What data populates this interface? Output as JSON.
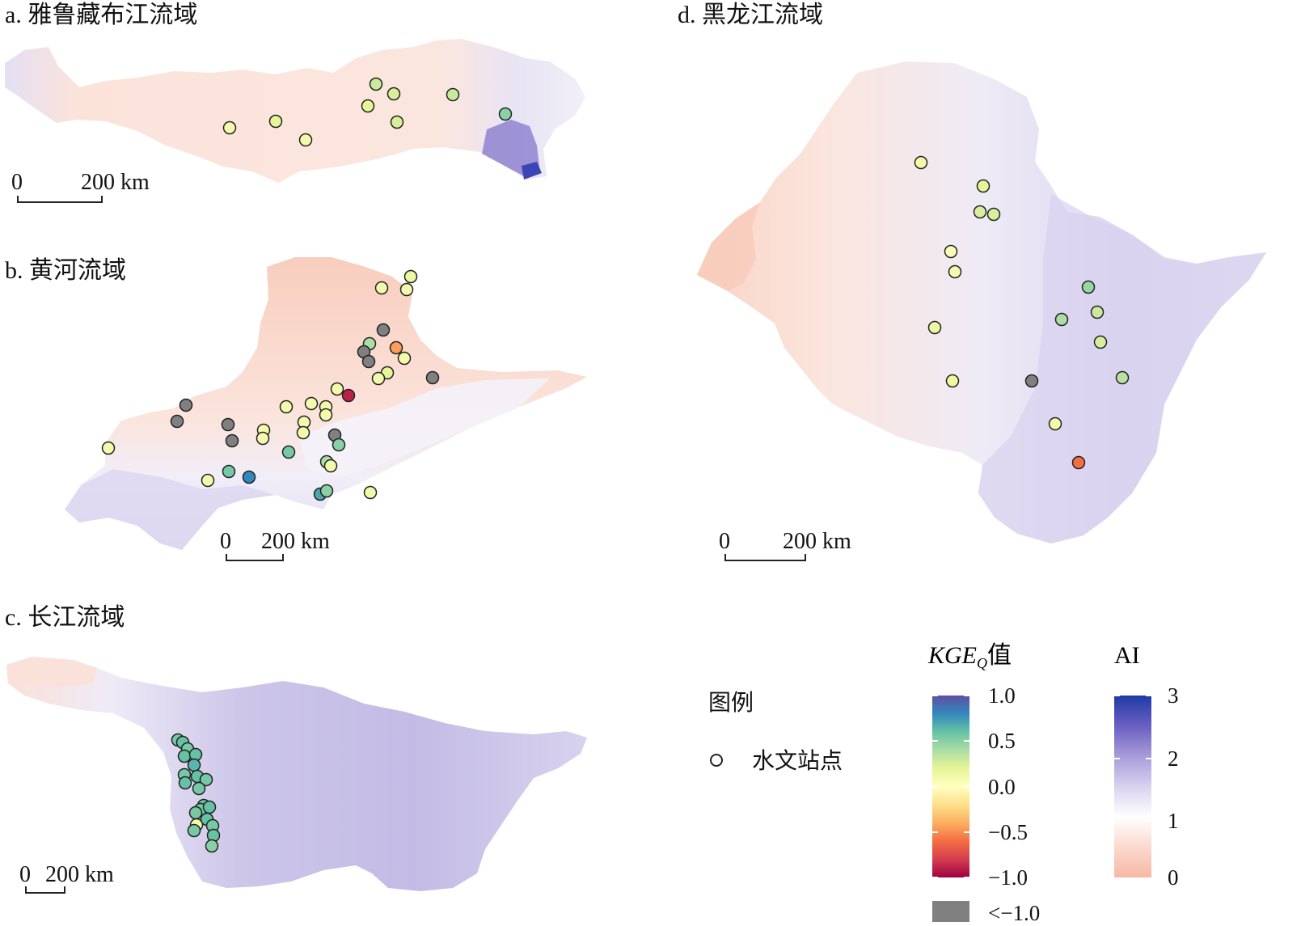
{
  "panels": [
    {
      "id": "a",
      "title": "a. 雅鲁藏布江流域",
      "scale": {
        "zero": "0",
        "label": "200 km"
      },
      "stations": [
        {
          "kge": 0.1
        },
        {
          "kge": 0.2
        },
        {
          "kge": 0.1
        },
        {
          "kge": 0.3
        },
        {
          "kge": 0.25
        },
        {
          "kge": 0.2
        },
        {
          "kge": 0.25
        },
        {
          "kge": 0.3
        },
        {
          "kge": 0.5
        }
      ]
    },
    {
      "id": "b",
      "title": "b. 黄河流域",
      "scale": {
        "zero": "0",
        "label": "200 km"
      },
      "stations": [
        {
          "kge": 0.15
        },
        {
          "kge": 0.1
        },
        {
          "kge": 0.1
        },
        {
          "kge": -2
        },
        {
          "kge": 0.4
        },
        {
          "kge": -2
        },
        {
          "kge": -2
        },
        {
          "kge": -0.45
        },
        {
          "kge": 0.1
        },
        {
          "kge": 0.2
        },
        {
          "kge": 0.1
        },
        {
          "kge": -2
        },
        {
          "kge": 0.1
        },
        {
          "kge": -0.9
        },
        {
          "kge": 0.1
        },
        {
          "kge": 0.1
        },
        {
          "kge": 0.1
        },
        {
          "kge": -2
        },
        {
          "kge": -2
        },
        {
          "kge": 0.1
        },
        {
          "kge": 0.1
        },
        {
          "kge": 0.1
        },
        {
          "kge": -2
        },
        {
          "kge": -2
        },
        {
          "kge": 0.1
        },
        {
          "kge": -2
        },
        {
          "kge": 0.1
        },
        {
          "kge": 0.5
        },
        {
          "kge": 0.55
        },
        {
          "kge": 0.1
        },
        {
          "kge": 0.4
        },
        {
          "kge": 0.1
        },
        {
          "kge": 0.55
        },
        {
          "kge": 0.8
        },
        {
          "kge": 0.1
        },
        {
          "kge": 0.7
        },
        {
          "kge": 0.5
        },
        {
          "kge": 0.1
        }
      ]
    },
    {
      "id": "c",
      "title": "c. 长江流域",
      "scale": {
        "zero": "0",
        "label": "200 km"
      },
      "stations": [
        {
          "kge": 0.55
        },
        {
          "kge": 0.6
        },
        {
          "kge": 0.55
        },
        {
          "kge": 0.6
        },
        {
          "kge": 0.6
        },
        {
          "kge": 0.65
        },
        {
          "kge": 0.55
        },
        {
          "kge": 0.6
        },
        {
          "kge": 0.55
        },
        {
          "kge": 0.6
        },
        {
          "kge": 0.55
        },
        {
          "kge": 0.6
        },
        {
          "kge": 0.55
        },
        {
          "kge": 0.6
        },
        {
          "kge": 0.55
        },
        {
          "kge": 0.1
        },
        {
          "kge": 0.55
        },
        {
          "kge": 0.6
        },
        {
          "kge": 0.55
        },
        {
          "kge": 0.6
        },
        {
          "kge": 0.5
        }
      ]
    },
    {
      "id": "d",
      "title": "d. 黑龙江流域",
      "scale": {
        "zero": "0",
        "label": "200 km"
      },
      "stations": [
        {
          "kge": 0.1
        },
        {
          "kge": 0.2
        },
        {
          "kge": 0.25
        },
        {
          "kge": 0.25
        },
        {
          "kge": 0.05
        },
        {
          "kge": 0.1
        },
        {
          "kge": 0.15
        },
        {
          "kge": 0.45
        },
        {
          "kge": 0.3
        },
        {
          "kge": 0.4
        },
        {
          "kge": 0.25
        },
        {
          "kge": 0.35
        },
        {
          "kge": -2
        },
        {
          "kge": 0.15
        },
        {
          "kge": 0.1
        },
        {
          "kge": -0.6
        }
      ]
    }
  ],
  "legend": {
    "title": "图例",
    "station_label": "水文站点",
    "kge": {
      "title": "KGE",
      "title_sub": "Q",
      "title_suffix": "值",
      "ticks": [
        "1.0",
        "0.5",
        "0.0",
        "−0.5",
        "−1.0"
      ],
      "na_label": "<−1.0",
      "na_color": "#808080",
      "colors": [
        "#5e4fa2",
        "#3288bd",
        "#66c2a5",
        "#abdda4",
        "#e6f598",
        "#ffffbf",
        "#fee08b",
        "#fdae61",
        "#f46d43",
        "#d53e4f",
        "#9e0142"
      ]
    },
    "ai": {
      "title": "AI",
      "ticks": [
        "3",
        "2",
        "1",
        "0"
      ],
      "colors": [
        "#1f3aa6",
        "#6a5fc1",
        "#a89bd9",
        "#d8d2ef",
        "#ffffff",
        "#fbd9ce",
        "#f6b8a4"
      ]
    }
  }
}
